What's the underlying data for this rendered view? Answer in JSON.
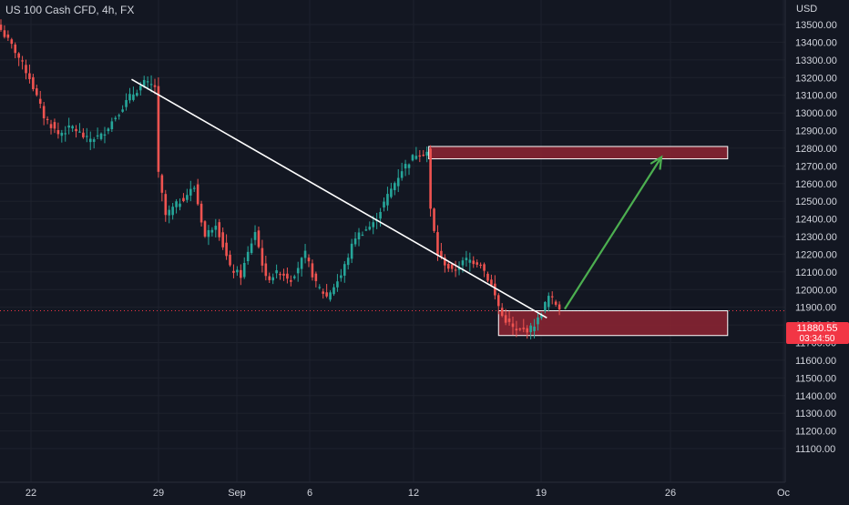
{
  "header": {
    "symbol_line": "US 100 Cash CFD, 4h, FX",
    "currency": "USD"
  },
  "price_badge": {
    "price": "11880.55",
    "countdown": "03:34:50"
  },
  "colors": {
    "background": "#131722",
    "up": "#26a69a",
    "down": "#ef5350",
    "zone_fill": "#8e2433",
    "arrow": "#4caf50",
    "trendline": "#ffffff"
  },
  "chart_data": {
    "type": "candlestick",
    "title": "US 100 Cash CFD, 4h, FX",
    "xlabel": "",
    "ylabel": "USD",
    "ylim": [
      11050,
      13650
    ],
    "y_ticks": [
      "13500.00",
      "13400.00",
      "13300.00",
      "13200.00",
      "13100.00",
      "13000.00",
      "12900.00",
      "12800.00",
      "12700.00",
      "12600.00",
      "12500.00",
      "12400.00",
      "12300.00",
      "12200.00",
      "12100.00",
      "12000.00",
      "11900.00",
      "11800.00",
      "11700.00",
      "11600.00",
      "11500.00",
      "11400.00",
      "11300.00",
      "11200.00",
      "11100.00"
    ],
    "x_ticks": [
      "22",
      "29",
      "Sep",
      "6",
      "12",
      "19",
      "26",
      "Oc"
    ],
    "grid": true,
    "current_price": 11880.55,
    "anchors": [
      [
        0,
        13470
      ],
      [
        4,
        13350
      ],
      [
        8,
        13200
      ],
      [
        12,
        12980
      ],
      [
        16,
        12880
      ],
      [
        20,
        12920
      ],
      [
        24,
        12850
      ],
      [
        28,
        12870
      ],
      [
        32,
        12980
      ],
      [
        36,
        13090
      ],
      [
        40,
        13170
      ],
      [
        43,
        13150
      ],
      [
        44,
        12650
      ],
      [
        46,
        12420
      ],
      [
        50,
        12500
      ],
      [
        54,
        12580
      ],
      [
        57,
        12300
      ],
      [
        60,
        12380
      ],
      [
        64,
        12120
      ],
      [
        67,
        12080
      ],
      [
        71,
        12330
      ],
      [
        74,
        12060
      ],
      [
        78,
        12100
      ],
      [
        81,
        12060
      ],
      [
        85,
        12200
      ],
      [
        88,
        12030
      ],
      [
        91,
        11960
      ],
      [
        95,
        12080
      ],
      [
        99,
        12300
      ],
      [
        104,
        12370
      ],
      [
        108,
        12530
      ],
      [
        112,
        12680
      ],
      [
        116,
        12770
      ],
      [
        119,
        12780
      ],
      [
        120,
        12450
      ],
      [
        122,
        12200
      ],
      [
        126,
        12100
      ],
      [
        130,
        12170
      ],
      [
        134,
        12150
      ],
      [
        137,
        12020
      ],
      [
        140,
        11850
      ],
      [
        144,
        11760
      ],
      [
        148,
        11780
      ],
      [
        150,
        11830
      ],
      [
        153,
        11960
      ],
      [
        156,
        11900
      ]
    ],
    "zones": [
      {
        "type": "rectangle",
        "x0": 119.5,
        "x1": 203.0,
        "y_top": 12810,
        "y_bottom": 12740
      },
      {
        "type": "rectangle",
        "x0": 139.0,
        "x1": 203.0,
        "y_top": 11880,
        "y_bottom": 11740
      }
    ],
    "trendline": {
      "from": [
        36.5,
        13190
      ],
      "to": [
        152.5,
        11840
      ]
    },
    "arrow": {
      "from": [
        157.5,
        11890
      ],
      "to": [
        184.5,
        12750
      ]
    }
  }
}
